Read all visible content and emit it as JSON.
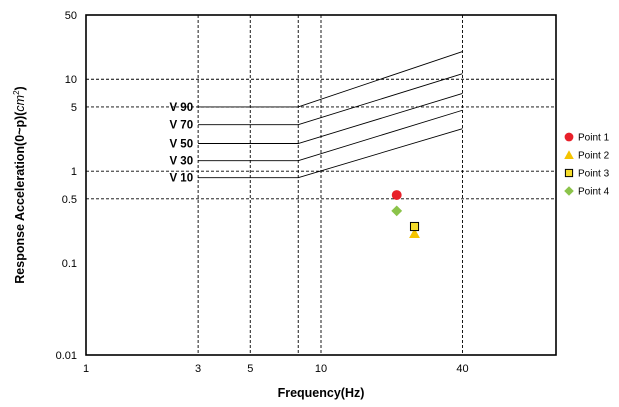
{
  "chart_data": {
    "type": "scatter",
    "x_scale": "log",
    "y_scale": "log",
    "xlim": [
      1,
      100
    ],
    "ylim": [
      0.01,
      50
    ],
    "grid": "dashed",
    "legend_position": "right",
    "xlabel": "Frequency(Hz)",
    "ylabel_prefix": "Response Acceleration(0~p)(",
    "ylabel_math": "cm",
    "ylabel_sup": "2",
    "ylabel_suffix": ")",
    "x_ticks": [
      {
        "value": 1,
        "label": "1"
      },
      {
        "value": 3,
        "label": "3"
      },
      {
        "value": 5,
        "label": "5"
      },
      {
        "value": 10,
        "label": "10"
      },
      {
        "value": 40,
        "label": "40"
      }
    ],
    "y_ticks": [
      {
        "value": 0.01,
        "label": "0.01"
      },
      {
        "value": 0.1,
        "label": "0.1"
      },
      {
        "value": 0.5,
        "label": "0.5"
      },
      {
        "value": 1,
        "label": "1"
      },
      {
        "value": 5,
        "label": "5"
      },
      {
        "value": 10,
        "label": "10"
      },
      {
        "value": 50,
        "label": "50"
      }
    ],
    "x_grid_values": [
      3,
      5,
      8,
      10,
      40
    ],
    "y_grid_values": [
      0.5,
      1,
      5,
      10
    ],
    "curves": [
      {
        "name": "V 90",
        "points": [
          [
            3,
            5.0
          ],
          [
            8,
            5.0
          ],
          [
            40,
            20.0
          ]
        ]
      },
      {
        "name": "V 70",
        "points": [
          [
            3,
            3.2
          ],
          [
            8,
            3.2
          ],
          [
            40,
            11.5
          ]
        ]
      },
      {
        "name": "V 50",
        "points": [
          [
            3,
            2.0
          ],
          [
            8,
            2.0
          ],
          [
            40,
            7.0
          ]
        ]
      },
      {
        "name": "V 30",
        "points": [
          [
            3,
            1.3
          ],
          [
            8,
            1.3
          ],
          [
            40,
            4.6
          ]
        ]
      },
      {
        "name": "V 10",
        "points": [
          [
            3,
            0.85
          ],
          [
            8,
            0.85
          ],
          [
            40,
            2.9
          ]
        ]
      }
    ],
    "series": [
      {
        "name": "Point 1",
        "marker": "circle",
        "color": "#e8202a",
        "points": [
          [
            21,
            0.55
          ]
        ]
      },
      {
        "name": "Point 2",
        "marker": "triangle",
        "color": "#f5c400",
        "points": [
          [
            25,
            0.21
          ]
        ]
      },
      {
        "name": "Point 3",
        "marker": "square",
        "color": "#f5dc2a",
        "points": [
          [
            25,
            0.25
          ]
        ]
      },
      {
        "name": "Point 4",
        "marker": "diamond",
        "color": "#8bc34a",
        "points": [
          [
            21,
            0.37
          ]
        ]
      }
    ]
  }
}
